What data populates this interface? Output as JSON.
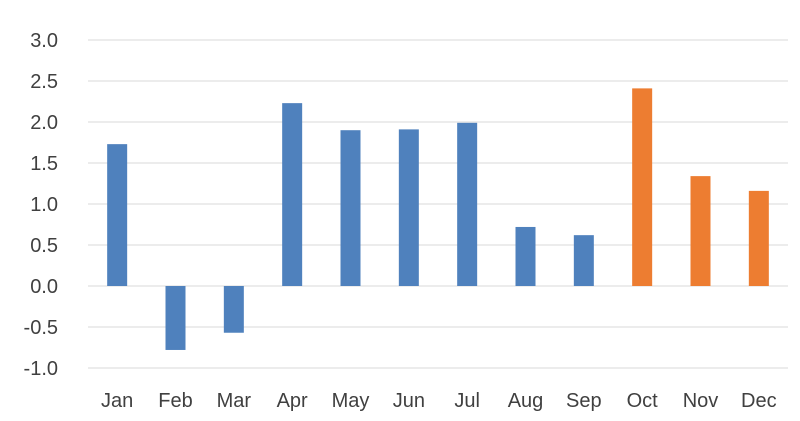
{
  "chart_data": {
    "type": "bar",
    "categories": [
      "Jan",
      "Feb",
      "Mar",
      "Apr",
      "May",
      "Jun",
      "Jul",
      "Aug",
      "Sep",
      "Oct",
      "Nov",
      "Dec"
    ],
    "values": [
      1.73,
      -0.78,
      -0.57,
      2.23,
      1.9,
      1.91,
      1.99,
      0.72,
      0.62,
      2.41,
      1.34,
      1.16
    ],
    "bar_colors": [
      "#4f81bd",
      "#4f81bd",
      "#4f81bd",
      "#4f81bd",
      "#4f81bd",
      "#4f81bd",
      "#4f81bd",
      "#4f81bd",
      "#4f81bd",
      "#ed7d31",
      "#ed7d31",
      "#ed7d31"
    ],
    "y_ticks": [
      "3.0",
      "2.5",
      "2.0",
      "1.5",
      "1.0",
      "0.5",
      "0.0",
      "-0.5",
      "-1.0"
    ],
    "ylim": [
      -1.0,
      3.0
    ],
    "grid": true,
    "legend": "none",
    "title": "",
    "xlabel": "",
    "ylabel": ""
  }
}
